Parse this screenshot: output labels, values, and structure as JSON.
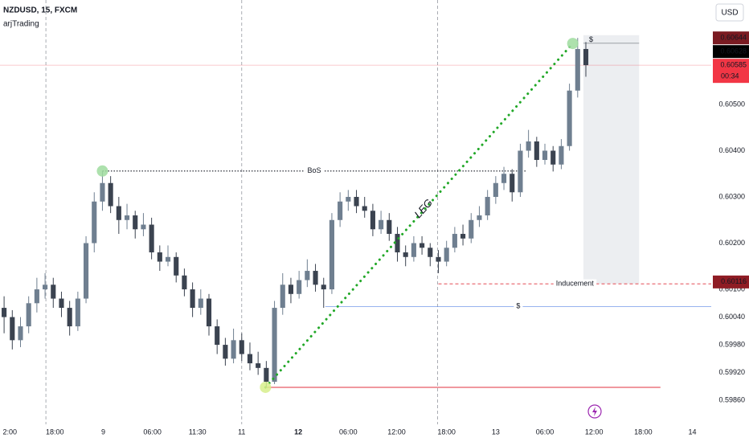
{
  "chart_data": {
    "type": "candlestick",
    "title": "NZDUSD, 15, FXCM",
    "subtitle": "arjTrading",
    "currency": "USD",
    "up_color": "#6f7f90",
    "down_color": "#3b4350",
    "xlim": [
      0,
      86.8
    ],
    "ylim": [
      0.59808,
      0.60726
    ],
    "xticks": [
      {
        "value": 1.2,
        "label": "2:00"
      },
      {
        "value": 6.7,
        "label": "18:00"
      },
      {
        "value": 12.6,
        "label": "9"
      },
      {
        "value": 18.6,
        "label": "06:00"
      },
      {
        "value": 24.1,
        "label": "11:30"
      },
      {
        "value": 29.5,
        "label": "11"
      },
      {
        "value": 36.4,
        "label": "12"
      },
      {
        "value": 42.5,
        "label": "06:00"
      },
      {
        "value": 48.4,
        "label": "12:00"
      },
      {
        "value": 54.5,
        "label": "18:00"
      },
      {
        "value": 60.5,
        "label": "13"
      },
      {
        "value": 66.5,
        "label": "06:00"
      },
      {
        "value": 72.5,
        "label": "12:00"
      },
      {
        "value": 78.5,
        "label": "18:00"
      },
      {
        "value": 84.5,
        "label": "14"
      }
    ],
    "yticks": [
      {
        "value": 0.605,
        "label": "0.60500"
      },
      {
        "value": 0.604,
        "label": "0.60400"
      },
      {
        "value": 0.603,
        "label": "0.60300"
      },
      {
        "value": 0.602,
        "label": "0.60200"
      },
      {
        "value": 0.601,
        "label": "0.60100"
      },
      {
        "value": 0.6004,
        "label": "0.60040"
      },
      {
        "value": 0.5998,
        "label": "0.59980"
      },
      {
        "value": 0.5992,
        "label": "0.59920"
      },
      {
        "value": 0.5986,
        "label": "0.59860"
      }
    ],
    "open": [
      0.6006,
      0.6004,
      0.5999,
      0.6002,
      0.6007,
      0.601,
      0.6011,
      0.6008,
      0.6006,
      0.6002,
      0.6008,
      0.602,
      0.6029,
      0.6033,
      0.6028,
      0.6025,
      0.6026,
      0.6023,
      0.6024,
      0.6018,
      0.6016,
      0.6017,
      0.6013,
      0.601,
      0.6006,
      0.6008,
      0.6002,
      0.5998,
      0.5995,
      0.5999,
      0.5996,
      0.5994,
      0.5993,
      0.599,
      0.6006,
      0.6011,
      0.6009,
      0.6012,
      0.6014,
      0.6011,
      0.601,
      0.6025,
      0.6029,
      0.603,
      0.6028,
      0.6027,
      0.6023,
      0.6025,
      0.6022,
      0.6018,
      0.6017,
      0.602,
      0.6019,
      0.6017,
      0.6016,
      0.6019,
      0.6022,
      0.6021,
      0.6025,
      0.6026,
      0.603,
      0.6033,
      0.6035,
      0.6031,
      0.604,
      0.6042,
      0.6038,
      0.604,
      0.6037,
      0.6041,
      0.6053,
      0.6062
    ],
    "high": [
      0.60085,
      0.60055,
      0.6004,
      0.60085,
      0.60125,
      0.60135,
      0.60125,
      0.60095,
      0.60075,
      0.60095,
      0.60215,
      0.6031,
      0.60356,
      0.60345,
      0.603,
      0.60285,
      0.6027,
      0.60265,
      0.60255,
      0.60195,
      0.60195,
      0.6018,
      0.60145,
      0.60115,
      0.601,
      0.6009,
      0.60035,
      0.59995,
      0.60015,
      0.60005,
      0.59985,
      0.59965,
      0.59945,
      0.60075,
      0.60135,
      0.60125,
      0.6014,
      0.60165,
      0.60155,
      0.60125,
      0.60265,
      0.6031,
      0.60315,
      0.60315,
      0.603,
      0.60285,
      0.6027,
      0.60265,
      0.60235,
      0.60195,
      0.60215,
      0.60215,
      0.602,
      0.60185,
      0.60205,
      0.60235,
      0.6024,
      0.60265,
      0.6028,
      0.60315,
      0.60345,
      0.60365,
      0.6036,
      0.60415,
      0.60445,
      0.6043,
      0.60415,
      0.6041,
      0.60425,
      0.60545,
      0.60644,
      0.60635
    ],
    "low": [
      0.60005,
      0.5997,
      0.59975,
      0.60005,
      0.6005,
      0.6008,
      0.6006,
      0.6004,
      0.6,
      0.6001,
      0.6007,
      0.6018,
      0.6027,
      0.60265,
      0.6022,
      0.6023,
      0.6021,
      0.60215,
      0.60165,
      0.6014,
      0.6015,
      0.60115,
      0.60085,
      0.6004,
      0.60045,
      0.6,
      0.5996,
      0.59935,
      0.5994,
      0.59945,
      0.59925,
      0.59915,
      0.59888,
      0.59895,
      0.60045,
      0.6007,
      0.6008,
      0.60105,
      0.60095,
      0.6006,
      0.6009,
      0.60235,
      0.6027,
      0.60265,
      0.60255,
      0.60215,
      0.6022,
      0.60205,
      0.6016,
      0.6015,
      0.6016,
      0.60175,
      0.6015,
      0.60135,
      0.6015,
      0.6018,
      0.60195,
      0.602,
      0.60235,
      0.6025,
      0.60285,
      0.60315,
      0.6029,
      0.603,
      0.60385,
      0.60365,
      0.6037,
      0.60355,
      0.6036,
      0.604,
      0.60515,
      0.6056
    ],
    "close": [
      0.6004,
      0.5999,
      0.6002,
      0.6007,
      0.601,
      0.6011,
      0.6008,
      0.6006,
      0.6002,
      0.6008,
      0.602,
      0.6029,
      0.6033,
      0.6028,
      0.6025,
      0.6026,
      0.6023,
      0.6024,
      0.6018,
      0.6016,
      0.6017,
      0.6013,
      0.601,
      0.6006,
      0.6008,
      0.6002,
      0.5998,
      0.5995,
      0.5999,
      0.5996,
      0.5994,
      0.5993,
      0.599,
      0.6006,
      0.6011,
      0.6009,
      0.6012,
      0.6014,
      0.6011,
      0.601,
      0.6025,
      0.6029,
      0.603,
      0.6028,
      0.6027,
      0.6023,
      0.6025,
      0.6022,
      0.6018,
      0.6017,
      0.602,
      0.6019,
      0.6017,
      0.6016,
      0.6019,
      0.6022,
      0.6021,
      0.6025,
      0.6026,
      0.603,
      0.6033,
      0.6035,
      0.6031,
      0.604,
      0.6042,
      0.6038,
      0.604,
      0.6037,
      0.6041,
      0.6053,
      0.6062,
      0.60585
    ],
    "price_labels": [
      {
        "value": 0.60644,
        "color": "#7a1b22"
      },
      {
        "value": 0.60628,
        "color": "#000000"
      },
      {
        "value": 0.60585,
        "color": "#f23645",
        "countdown": "00:34"
      },
      {
        "value": 0.60116,
        "color": "#8f1c24"
      }
    ],
    "session_lines": [
      5.6,
      29.5,
      53.4
    ],
    "bos": {
      "label": "BoS",
      "value": 0.60356,
      "x": [
        12.5,
        64.2
      ],
      "color": "#131722"
    },
    "leg": {
      "label": "LEG",
      "x": [
        32.4,
        69.9
      ],
      "y": [
        0.59888,
        0.60632
      ],
      "color": "#22a828"
    },
    "inducement": {
      "label": "Inducement",
      "value": 0.60112,
      "x": [
        53.5,
        86.8
      ],
      "color": "#e0323c"
    },
    "liquidity": {
      "label": "$",
      "value": 0.60063,
      "x": [
        39.7,
        86.8
      ],
      "color": "#5b86e5"
    },
    "low_line": {
      "value": 0.59888,
      "x": [
        32.4,
        80.6
      ],
      "color": "#e0323c"
    },
    "zone": {
      "x": [
        71.2,
        78.0
      ],
      "y": [
        0.60112,
        0.6065
      ]
    },
    "zone_top": {
      "label": "$",
      "x": 71.3,
      "value": 0.6064
    },
    "swing_points": [
      {
        "x": 12.5,
        "value": 0.60356,
        "color": "#9fdc9f"
      },
      {
        "x": 69.9,
        "value": 0.60632,
        "color": "#9fdc9f"
      },
      {
        "x": 32.4,
        "value": 0.59888,
        "color": "#d7ee8c"
      }
    ]
  }
}
